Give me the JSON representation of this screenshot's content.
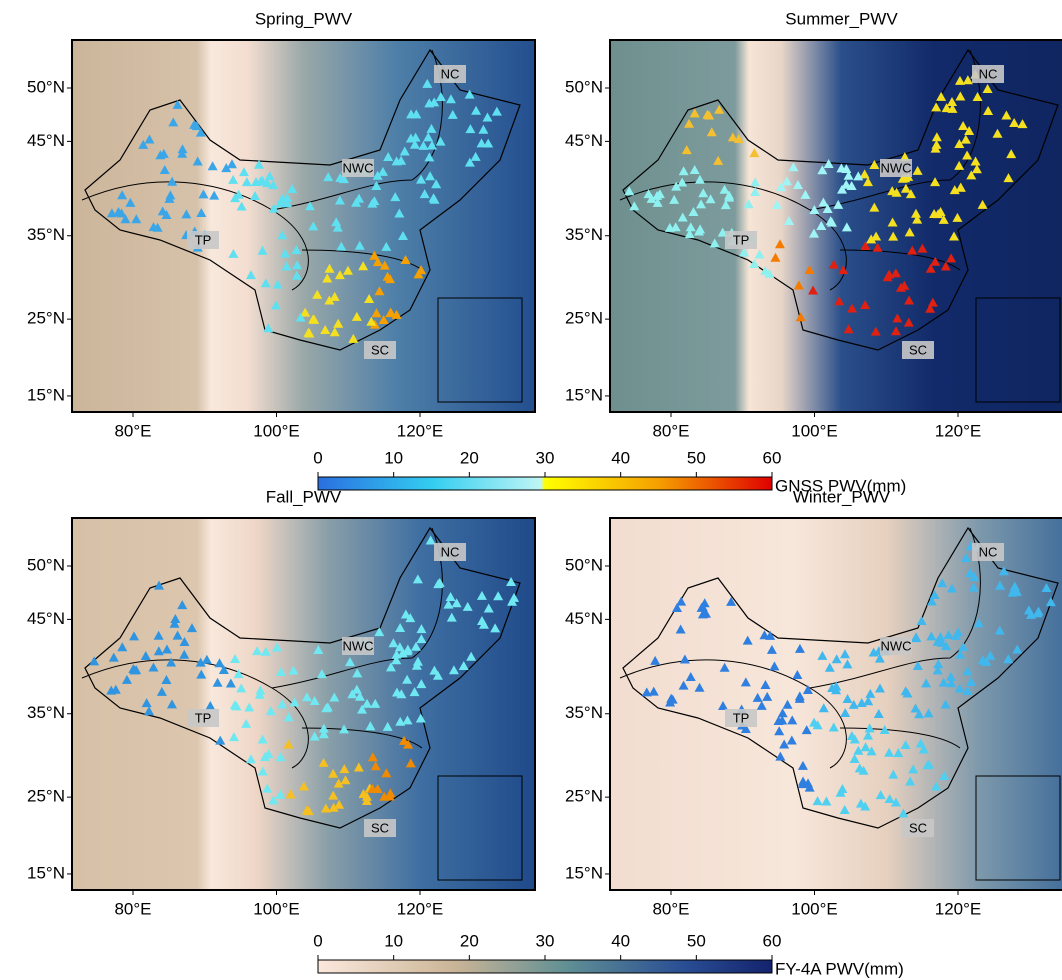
{
  "panels": [
    {
      "title": "Spring_PWV"
    },
    {
      "title": "Summer_PWV"
    },
    {
      "title": "Fall_PWV"
    },
    {
      "title": "Winter_PWV"
    }
  ],
  "lat_ticks": [
    {
      "value": 50,
      "label": "50°N"
    },
    {
      "value": 45,
      "label": "45°N"
    },
    {
      "value": 35,
      "label": "35°N"
    },
    {
      "value": 25,
      "label": "25°N"
    },
    {
      "value": 15,
      "label": "15°N"
    }
  ],
  "lon_ticks": [
    {
      "value": 80,
      "label": "80°E"
    },
    {
      "value": 100,
      "label": "100°E"
    },
    {
      "value": 120,
      "label": "120°E"
    }
  ],
  "regions": [
    "NC",
    "NWC",
    "TP",
    "SC"
  ],
  "colorbars": [
    {
      "label": "GNSS PWV(mm)",
      "lim": [
        0,
        60
      ],
      "ticks": [
        0,
        10,
        20,
        30,
        40,
        50,
        60
      ]
    },
    {
      "label": "FY-4A PWV(mm)",
      "lim": [
        0,
        60
      ],
      "ticks": [
        0,
        10,
        20,
        30,
        40,
        50,
        60
      ]
    }
  ]
}
